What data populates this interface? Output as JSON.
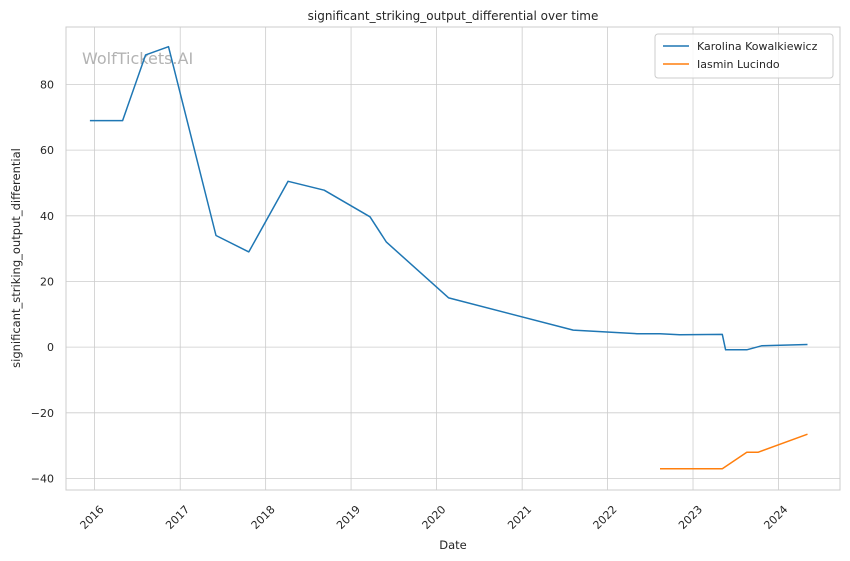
{
  "chart_data": {
    "type": "line",
    "title": "significant_striking_output_differential over time",
    "xlabel": "Date",
    "ylabel": "significant_striking_output_differential",
    "watermark": "WolfTickets.AI",
    "x_ticks": [
      "2016",
      "2017",
      "2018",
      "2019",
      "2020",
      "2021",
      "2022",
      "2023",
      "2024"
    ],
    "y_ticks": [
      -40,
      -20,
      0,
      20,
      40,
      60,
      80
    ],
    "ylim": [
      -43.5,
      97.5
    ],
    "xlim": [
      "2015-09-01",
      "2024-09-20"
    ],
    "grid": true,
    "legend_position": "top-right",
    "series": [
      {
        "name": "Karolina Kowalkiewicz",
        "color": "#1f77b4",
        "points": [
          {
            "x": "2015-12-12",
            "y": 69
          },
          {
            "x": "2016-04-30",
            "y": 69
          },
          {
            "x": "2016-08-06",
            "y": 89
          },
          {
            "x": "2016-11-12",
            "y": 91.5
          },
          {
            "x": "2017-06-03",
            "y": 34
          },
          {
            "x": "2017-10-21",
            "y": 29
          },
          {
            "x": "2018-04-07",
            "y": 50.5
          },
          {
            "x": "2018-09-08",
            "y": 47.8
          },
          {
            "x": "2019-03-23",
            "y": 39.7
          },
          {
            "x": "2019-06-01",
            "y": 32
          },
          {
            "x": "2020-02-22",
            "y": 15
          },
          {
            "x": "2021-08-07",
            "y": 5.2
          },
          {
            "x": "2022-05-07",
            "y": 4.1
          },
          {
            "x": "2022-08-13",
            "y": 4.1
          },
          {
            "x": "2022-11-05",
            "y": 3.8
          },
          {
            "x": "2023-05-06",
            "y": 3.9
          },
          {
            "x": "2023-05-20",
            "y": -0.8
          },
          {
            "x": "2023-08-19",
            "y": -0.8
          },
          {
            "x": "2023-10-21",
            "y": 0.4
          },
          {
            "x": "2024-05-04",
            "y": 0.8
          }
        ]
      },
      {
        "name": "Iasmin Lucindo",
        "color": "#ff7f0e",
        "points": [
          {
            "x": "2022-08-13",
            "y": -37
          },
          {
            "x": "2023-05-06",
            "y": -37
          },
          {
            "x": "2023-08-19",
            "y": -32
          },
          {
            "x": "2023-10-07",
            "y": -32
          },
          {
            "x": "2024-05-04",
            "y": -26.5
          }
        ]
      }
    ]
  }
}
